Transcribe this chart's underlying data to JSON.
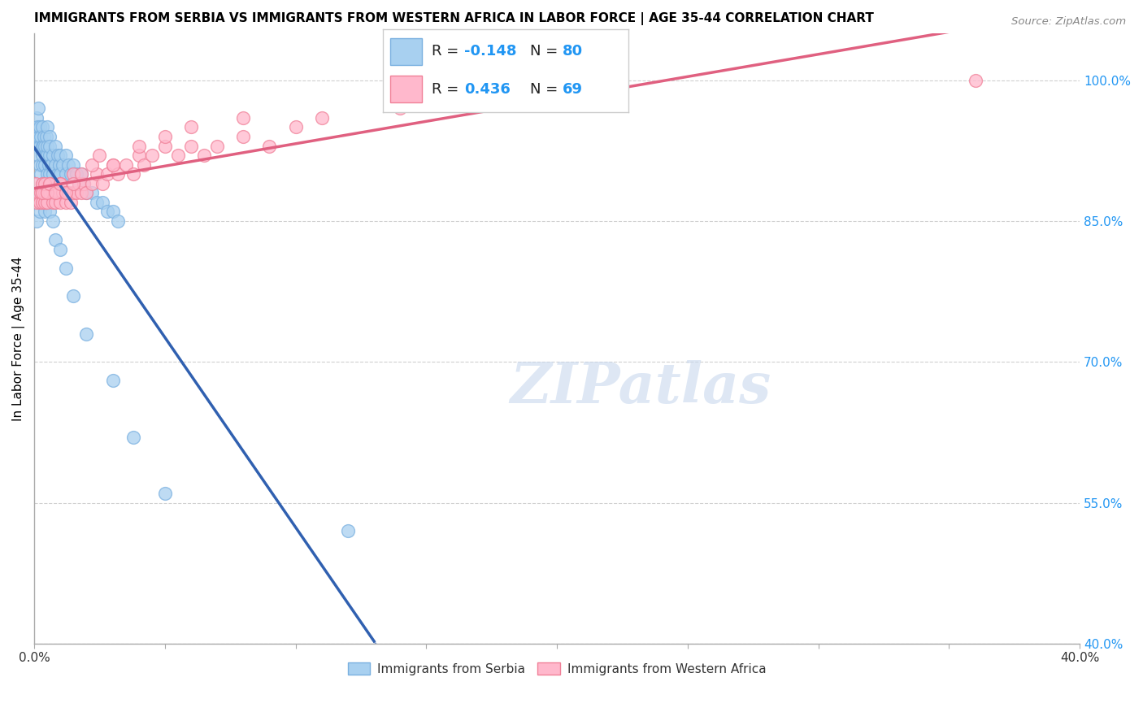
{
  "title": "IMMIGRANTS FROM SERBIA VS IMMIGRANTS FROM WESTERN AFRICA IN LABOR FORCE | AGE 35-44 CORRELATION CHART",
  "source": "Source: ZipAtlas.com",
  "ylabel": "In Labor Force | Age 35-44",
  "xlim": [
    0.0,
    0.4
  ],
  "ylim": [
    0.4,
    1.05
  ],
  "x_ticks": [
    0.0,
    0.05,
    0.1,
    0.15,
    0.2,
    0.25,
    0.3,
    0.35,
    0.4
  ],
  "x_tick_labels": [
    "0.0%",
    "",
    "",
    "",
    "",
    "",
    "",
    "",
    "40.0%"
  ],
  "y_ticks": [
    0.4,
    0.55,
    0.7,
    0.85,
    1.0
  ],
  "y_tick_labels": [
    "40.0%",
    "55.0%",
    "70.0%",
    "85.0%",
    "100.0%"
  ],
  "serbia_color": "#a8d0f0",
  "serbia_edge_color": "#7ab0e0",
  "western_africa_color": "#ffb8cc",
  "western_africa_edge_color": "#f08098",
  "serbia_line_color": "#3060b0",
  "western_africa_line_color": "#e06080",
  "serbia_R": -0.148,
  "serbia_N": 80,
  "western_africa_R": 0.436,
  "western_africa_N": 69,
  "grid_color": "#d0d0d0",
  "background_color": "#ffffff",
  "legend_label_serbia": "Immigrants from Serbia",
  "legend_label_western_africa": "Immigrants from Western Africa",
  "watermark_text": "ZIPatlas",
  "serbia_x": [
    0.0005,
    0.0008,
    0.001,
    0.0012,
    0.0013,
    0.0015,
    0.0015,
    0.0017,
    0.002,
    0.002,
    0.0022,
    0.0025,
    0.0025,
    0.003,
    0.003,
    0.003,
    0.0032,
    0.0035,
    0.0038,
    0.004,
    0.004,
    0.0042,
    0.0045,
    0.005,
    0.005,
    0.005,
    0.005,
    0.0055,
    0.006,
    0.006,
    0.006,
    0.006,
    0.0065,
    0.007,
    0.007,
    0.0075,
    0.008,
    0.008,
    0.009,
    0.009,
    0.0095,
    0.01,
    0.01,
    0.011,
    0.012,
    0.012,
    0.013,
    0.014,
    0.015,
    0.016,
    0.017,
    0.018,
    0.019,
    0.02,
    0.022,
    0.024,
    0.026,
    0.028,
    0.03,
    0.032,
    0.001,
    0.001,
    0.002,
    0.002,
    0.003,
    0.003,
    0.004,
    0.004,
    0.005,
    0.006,
    0.007,
    0.008,
    0.01,
    0.012,
    0.015,
    0.02,
    0.03,
    0.038,
    0.05,
    0.12
  ],
  "serbia_y": [
    0.94,
    0.96,
    0.93,
    0.94,
    0.95,
    0.92,
    0.97,
    0.94,
    0.91,
    0.95,
    0.93,
    0.9,
    0.94,
    0.91,
    0.93,
    0.95,
    0.92,
    0.93,
    0.94,
    0.91,
    0.93,
    0.92,
    0.94,
    0.9,
    0.92,
    0.93,
    0.95,
    0.91,
    0.9,
    0.92,
    0.94,
    0.93,
    0.91,
    0.9,
    0.92,
    0.89,
    0.91,
    0.93,
    0.9,
    0.92,
    0.91,
    0.9,
    0.92,
    0.91,
    0.9,
    0.92,
    0.91,
    0.9,
    0.91,
    0.9,
    0.89,
    0.9,
    0.89,
    0.88,
    0.88,
    0.87,
    0.87,
    0.86,
    0.86,
    0.85,
    0.88,
    0.85,
    0.86,
    0.88,
    0.87,
    0.89,
    0.86,
    0.88,
    0.87,
    0.86,
    0.85,
    0.83,
    0.82,
    0.8,
    0.77,
    0.73,
    0.68,
    0.62,
    0.56,
    0.52
  ],
  "western_africa_x": [
    0.0005,
    0.001,
    0.0015,
    0.002,
    0.0025,
    0.003,
    0.003,
    0.004,
    0.004,
    0.005,
    0.005,
    0.006,
    0.006,
    0.007,
    0.007,
    0.008,
    0.009,
    0.01,
    0.01,
    0.011,
    0.012,
    0.013,
    0.014,
    0.015,
    0.015,
    0.016,
    0.017,
    0.018,
    0.019,
    0.02,
    0.022,
    0.024,
    0.026,
    0.028,
    0.03,
    0.032,
    0.035,
    0.038,
    0.04,
    0.042,
    0.045,
    0.05,
    0.055,
    0.06,
    0.065,
    0.07,
    0.08,
    0.09,
    0.1,
    0.11,
    0.003,
    0.004,
    0.005,
    0.006,
    0.008,
    0.01,
    0.012,
    0.015,
    0.018,
    0.022,
    0.025,
    0.03,
    0.04,
    0.05,
    0.06,
    0.08,
    0.14,
    0.2,
    0.36
  ],
  "western_africa_y": [
    0.89,
    0.87,
    0.88,
    0.87,
    0.88,
    0.87,
    0.89,
    0.88,
    0.87,
    0.88,
    0.87,
    0.88,
    0.89,
    0.87,
    0.88,
    0.87,
    0.88,
    0.87,
    0.89,
    0.88,
    0.87,
    0.88,
    0.87,
    0.88,
    0.9,
    0.88,
    0.89,
    0.88,
    0.89,
    0.88,
    0.89,
    0.9,
    0.89,
    0.9,
    0.91,
    0.9,
    0.91,
    0.9,
    0.92,
    0.91,
    0.92,
    0.93,
    0.92,
    0.93,
    0.92,
    0.93,
    0.94,
    0.93,
    0.95,
    0.96,
    0.88,
    0.89,
    0.88,
    0.89,
    0.88,
    0.89,
    0.88,
    0.89,
    0.9,
    0.91,
    0.92,
    0.91,
    0.93,
    0.94,
    0.95,
    0.96,
    0.97,
    0.98,
    1.0
  ]
}
